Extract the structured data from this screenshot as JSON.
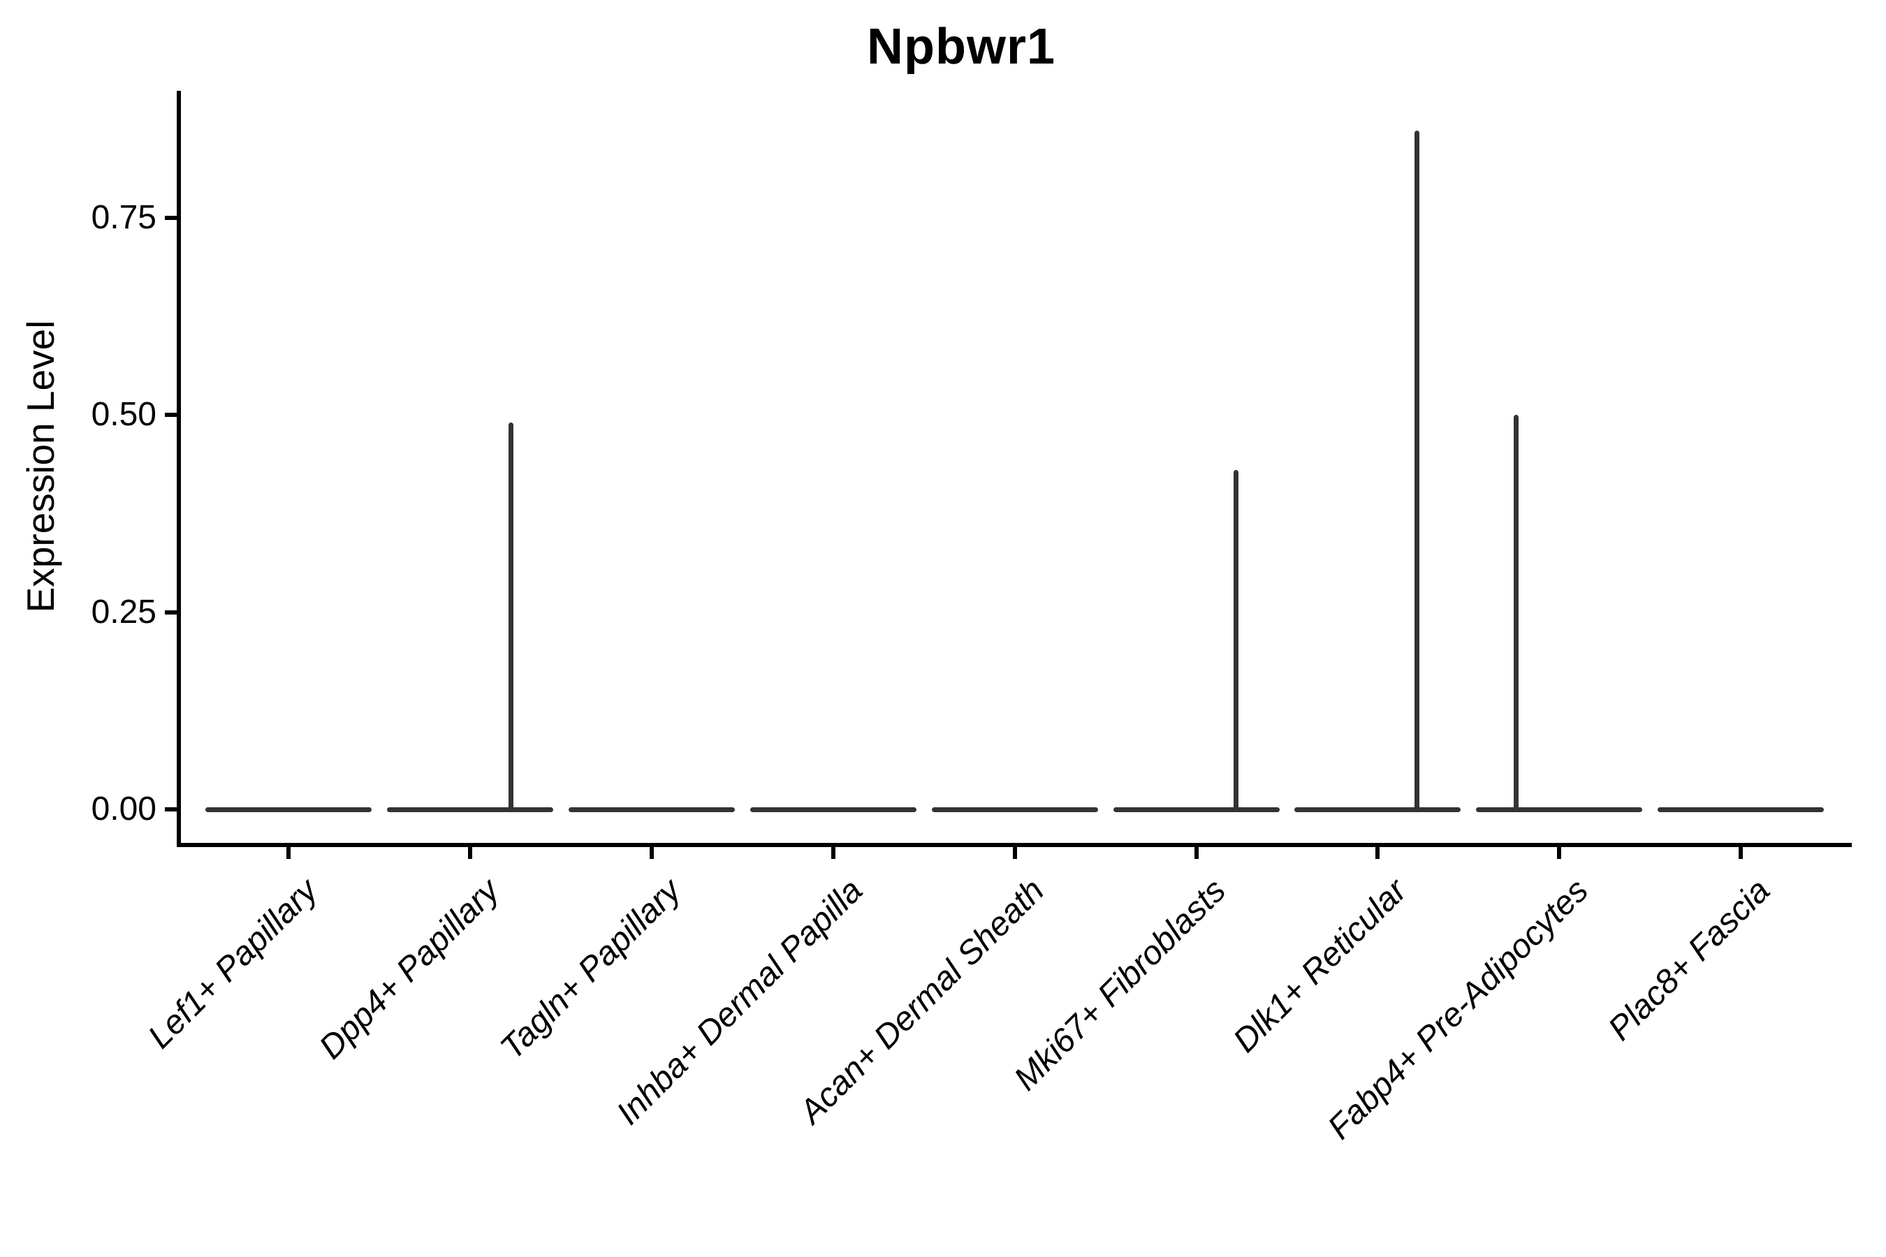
{
  "title": "Npbwr1",
  "y_axis": {
    "label": "Expression Level",
    "tick_labels": [
      "0.00",
      "0.25",
      "0.50",
      "0.75"
    ],
    "tick_values": [
      0,
      0.25,
      0.5,
      0.75
    ]
  },
  "x_axis": {
    "categories": [
      "Lef1+ Papillary",
      "Dpp4+ Papillary",
      "Tagln+ Papillary",
      "Inhba+ Dermal Papilla",
      "Acan+ Dermal Sheath",
      "Mki67+ Fibroblasts",
      "Dlk1+ Reticular",
      "Fabp4+ Pre-Adipocytes",
      "Plac8+ Fascia"
    ]
  },
  "colors": {
    "violin_stroke": "#333333",
    "axis": "#000000",
    "text": "#000000",
    "background": "#ffffff"
  },
  "chart_data": {
    "type": "violin",
    "title": "Npbwr1",
    "xlabel": "",
    "ylabel": "Expression Level",
    "categories": [
      "Lef1+ Papillary",
      "Dpp4+ Papillary",
      "Tagln+ Papillary",
      "Inhba+ Dermal Papilla",
      "Acan+ Dermal Sheath",
      "Mki67+ Fibroblasts",
      "Dlk1+ Reticular",
      "Fabp4+ Pre-Adipocytes",
      "Plac8+ Fascia"
    ],
    "series": [
      {
        "name": "Lef1+ Papillary",
        "max_expression": 0.0
      },
      {
        "name": "Dpp4+ Papillary",
        "max_expression": 0.49
      },
      {
        "name": "Tagln+ Papillary",
        "max_expression": 0.0
      },
      {
        "name": "Inhba+ Dermal Papilla",
        "max_expression": 0.0
      },
      {
        "name": "Acan+ Dermal Sheath",
        "max_expression": 0.0
      },
      {
        "name": "Mki67+ Fibroblasts",
        "max_expression": 0.43
      },
      {
        "name": "Dlk1+ Reticular",
        "max_expression": 0.86
      },
      {
        "name": "Fabp4+ Pre-Adipocytes",
        "max_expression": 0.5
      },
      {
        "name": "Plac8+ Fascia",
        "max_expression": 0.0
      }
    ],
    "distribution_note": "Expression is concentrated at 0 in all clusters: each violin collapses to a flat bar at 0.00 with a hairline spike rising to the maximum value in Dpp4+ Papillary (~0.49), Mki67+ Fibroblasts (~0.43), Dlk1+ Reticular (~0.86) and Fabp4+ Pre-Adipocytes (~0.50).",
    "yticks": [
      0,
      0.25,
      0.5,
      0.75
    ],
    "ylim": [
      -0.045,
      0.91
    ],
    "grid": false,
    "legend": "none"
  }
}
